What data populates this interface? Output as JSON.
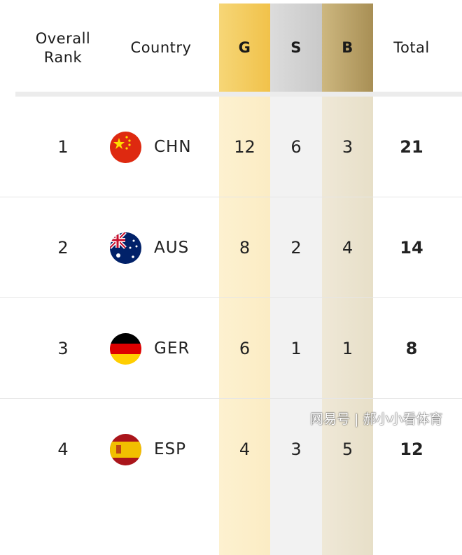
{
  "header": {
    "rank_label_1": "Overall",
    "rank_label_2": "Rank",
    "country": "Country",
    "gold": "G",
    "silver": "S",
    "bronze": "B",
    "total": "Total"
  },
  "colors": {
    "gold": "#f1c24a",
    "silver": "#cfcfcf",
    "bronze": "#b39b62"
  },
  "rows": [
    {
      "rank": "1",
      "code": "CHN",
      "flag": "china-flag-icon",
      "gold": "12",
      "silver": "6",
      "bronze": "3",
      "total": "21"
    },
    {
      "rank": "2",
      "code": "AUS",
      "flag": "australia-flag-icon",
      "gold": "8",
      "silver": "2",
      "bronze": "4",
      "total": "14"
    },
    {
      "rank": "3",
      "code": "GER",
      "flag": "germany-flag-icon",
      "gold": "6",
      "silver": "1",
      "bronze": "1",
      "total": "8"
    },
    {
      "rank": "4",
      "code": "ESP",
      "flag": "spain-flag-icon",
      "gold": "4",
      "silver": "3",
      "bronze": "5",
      "total": "12"
    }
  ],
  "watermark": "网易号 | 郝小小看体育"
}
